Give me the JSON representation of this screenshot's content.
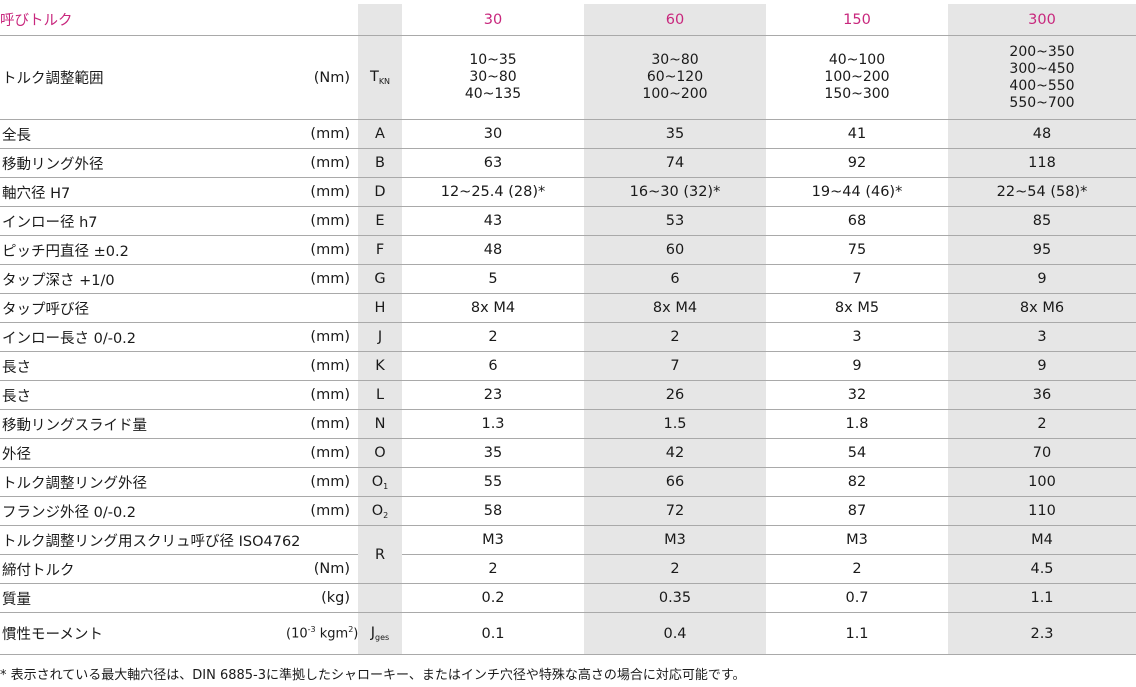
{
  "title": "呼びトルク",
  "sizes": [
    "30",
    "60",
    "150",
    "300"
  ],
  "torque_range": {
    "label": "トルク調整範囲",
    "unit": "(Nm)",
    "symbol": "T",
    "symbol_sub": "KN",
    "values": [
      [
        "10~35",
        "30~80",
        "40~135"
      ],
      [
        "30~80",
        "60~120",
        "100~200"
      ],
      [
        "40~100",
        "100~200",
        "150~300"
      ],
      [
        "200~350",
        "300~450",
        "400~550",
        "550~700"
      ]
    ]
  },
  "rows": [
    {
      "label": "全長",
      "unit": "(mm)",
      "symbol": "A",
      "sub": "",
      "values": [
        "30",
        "35",
        "41",
        "48"
      ]
    },
    {
      "label": "移動リング外径",
      "unit": "(mm)",
      "symbol": "B",
      "sub": "",
      "values": [
        "63",
        "74",
        "92",
        "118"
      ]
    },
    {
      "label": "軸穴径 H7",
      "unit": "(mm)",
      "symbol": "D",
      "sub": "",
      "values": [
        "12~25.4 (28)*",
        "16~30 (32)*",
        "19~44 (46)*",
        "22~54 (58)*"
      ]
    },
    {
      "label": "インロー径 h7",
      "unit": "(mm)",
      "symbol": "E",
      "sub": "",
      "values": [
        "43",
        "53",
        "68",
        "85"
      ]
    },
    {
      "label": "ピッチ円直径 ±0.2",
      "unit": "(mm)",
      "symbol": "F",
      "sub": "",
      "values": [
        "48",
        "60",
        "75",
        "95"
      ]
    },
    {
      "label": "タップ深さ +1/0",
      "unit": "(mm)",
      "symbol": "G",
      "sub": "",
      "values": [
        "5",
        "6",
        "7",
        "9"
      ]
    },
    {
      "label": "タップ呼び径",
      "unit": "",
      "symbol": "H",
      "sub": "",
      "values": [
        "8x M4",
        "8x M4",
        "8x M5",
        "8x M6"
      ]
    },
    {
      "label": "インロー長さ 0/-0.2",
      "unit": "(mm)",
      "symbol": "J",
      "sub": "",
      "values": [
        "2",
        "2",
        "3",
        "3"
      ]
    },
    {
      "label": "長さ",
      "unit": "(mm)",
      "symbol": "K",
      "sub": "",
      "values": [
        "6",
        "7",
        "9",
        "9"
      ]
    },
    {
      "label": "長さ",
      "unit": "(mm)",
      "symbol": "L",
      "sub": "",
      "values": [
        "23",
        "26",
        "32",
        "36"
      ]
    },
    {
      "label": "移動リングスライド量",
      "unit": "(mm)",
      "symbol": "N",
      "sub": "",
      "values": [
        "1.3",
        "1.5",
        "1.8",
        "2"
      ]
    },
    {
      "label": "外径",
      "unit": "(mm)",
      "symbol": "O",
      "sub": "",
      "values": [
        "35",
        "42",
        "54",
        "70"
      ]
    },
    {
      "label": "トルク調整リング外径",
      "unit": "(mm)",
      "symbol": "O",
      "sub": "1",
      "values": [
        "55",
        "66",
        "82",
        "100"
      ]
    },
    {
      "label": "フランジ外径 0/-0.2",
      "unit": "(mm)",
      "symbol": "O",
      "sub": "2",
      "values": [
        "58",
        "72",
        "87",
        "110"
      ]
    }
  ],
  "screw": {
    "label": "トルク調整リング用スクリュ呼び径 ISO4762",
    "symbol": "R",
    "values": [
      "M3",
      "M3",
      "M3",
      "M4"
    ]
  },
  "tightening": {
    "label": "締付トルク",
    "unit": "(Nm)",
    "values": [
      "2",
      "2",
      "2",
      "4.5"
    ]
  },
  "mass": {
    "label": "質量",
    "unit": "(kg)",
    "values": [
      "0.2",
      "0.35",
      "0.7",
      "1.1"
    ]
  },
  "inertia": {
    "label": "慣性モーメント",
    "unit_prefix": "(10",
    "unit_exp": "-3",
    "unit_mid": " kgm",
    "unit_exp2": "2",
    "unit_suffix": ")",
    "symbol": "J",
    "symbol_sub": "ges",
    "values": [
      "0.1",
      "0.4",
      "1.1",
      "2.3"
    ]
  },
  "footnote": "* 表示されている最大軸穴径は、DIN 6885-3に準拠したシャローキー、またはインチ穴径や特殊な高さの場合に対応可能です。",
  "colors": {
    "accent": "#c8277d",
    "shade": "#e6e6e6",
    "rule": "#a9a9a9"
  }
}
